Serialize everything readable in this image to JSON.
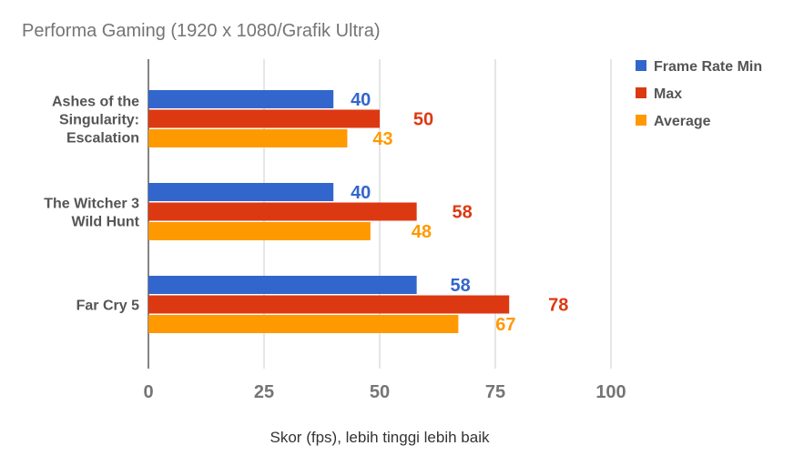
{
  "chart_data": {
    "type": "bar",
    "orientation": "horizontal",
    "title": "Performa Gaming (1920 x 1080/Grafik Ultra)",
    "xlabel": "Skor (fps), lebih tinggi lebih baik",
    "ylabel": "",
    "xlim": [
      0,
      100
    ],
    "x_ticks": [
      "0",
      "25",
      "50",
      "75",
      "100"
    ],
    "grid": true,
    "legend_position": "top-right",
    "categories": [
      [
        "Ashes of the",
        "Singularity:",
        "Escalation"
      ],
      [
        "The Witcher 3",
        "Wild Hunt"
      ],
      [
        "Far Cry 5"
      ]
    ],
    "series": [
      {
        "name": "Frame Rate Min",
        "color": "#3366cc",
        "values": [
          40,
          40,
          58
        ]
      },
      {
        "name": "Max",
        "color": "#dc3912",
        "values": [
          50,
          58,
          78
        ]
      },
      {
        "name": "Average",
        "color": "#ff9900",
        "values": [
          43,
          48,
          67
        ]
      }
    ]
  }
}
